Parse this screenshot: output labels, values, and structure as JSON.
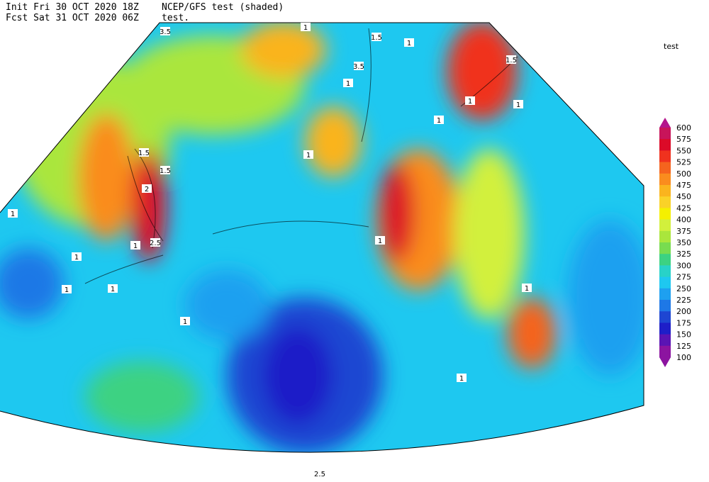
{
  "header": {
    "init": "Init  Fri 30 OCT 2020 18Z",
    "model": "NCEP/GFS test (shaded)",
    "forecast": "Fcst Sat 31 OCT 2020 06Z",
    "field": "test."
  },
  "legend": {
    "title": "test",
    "levels": [
      600,
      575,
      550,
      525,
      500,
      475,
      450,
      425,
      400,
      375,
      350,
      325,
      300,
      275,
      250,
      225,
      200,
      175,
      150,
      125,
      100
    ],
    "colors": [
      "#c8145a",
      "#dc0a28",
      "#f0321e",
      "#f5641e",
      "#fa8c1e",
      "#fab41e",
      "#fad228",
      "#f5f000",
      "#d2f03c",
      "#aae63c",
      "#78dc50",
      "#3cd282",
      "#28d2c8",
      "#1ec8f0",
      "#1ea0f0",
      "#1e78e6",
      "#1e46d2",
      "#1e1ec8",
      "#5a14b4",
      "#8c14a0"
    ],
    "top_color": "#b4148c",
    "bottom_color": "#8c14a0"
  },
  "contour_labels": [
    "1.5",
    "1",
    "3.5",
    "1.5",
    "1",
    "3.5",
    "1.5",
    "2",
    "1.5",
    "2.5",
    "1",
    "1",
    "1",
    "1",
    "1",
    "1",
    "1",
    "1",
    "1",
    "1",
    "1",
    "1",
    "1",
    "1",
    "2.5"
  ]
}
